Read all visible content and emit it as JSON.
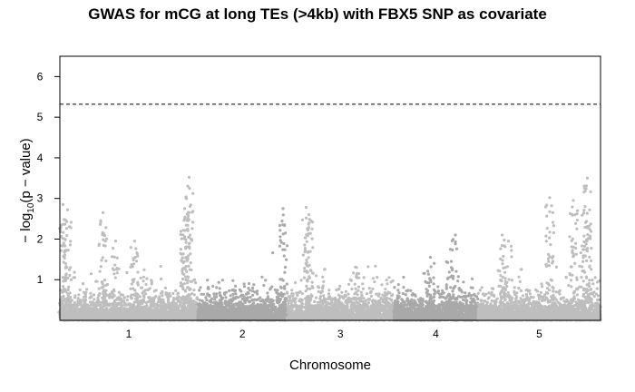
{
  "chart_data": {
    "type": "scatter",
    "title": "GWAS for mCG at long TEs (>4kb) with FBX5 SNP as covariate",
    "xlabel": "Chromosome",
    "ylabel": "−log10(p − value)",
    "ylabel_parts": {
      "pre": "− log",
      "sub": "10",
      "post": "(p − value)"
    },
    "ylim": [
      0,
      6.5
    ],
    "yticks": [
      "1",
      "2",
      "3",
      "4",
      "5",
      "6"
    ],
    "chromosomes": [
      {
        "name": "1",
        "start": 0,
        "end": 30.4,
        "color": "#bebebe"
      },
      {
        "name": "2",
        "start": 30.4,
        "end": 50.1,
        "color": "#a9a9a9"
      },
      {
        "name": "3",
        "start": 50.1,
        "end": 73.6,
        "color": "#bebebe"
      },
      {
        "name": "4",
        "start": 73.6,
        "end": 92.2,
        "color": "#a9a9a9"
      },
      {
        "name": "5",
        "start": 92.2,
        "end": 119.2,
        "color": "#bebebe"
      }
    ],
    "xlim": [
      0,
      119.2
    ],
    "threshold": 5.32,
    "peaks": [
      {
        "chrom": "1",
        "pos": 28.5,
        "value": 3.52
      },
      {
        "chrom": "1",
        "pos": 27.9,
        "value": 3.0
      },
      {
        "chrom": "1",
        "pos": 27.5,
        "value": 2.75
      },
      {
        "chrom": "1",
        "pos": 9.5,
        "value": 2.65
      },
      {
        "chrom": "1",
        "pos": 1.7,
        "value": 2.72
      },
      {
        "chrom": "1",
        "pos": 0.7,
        "value": 2.85
      },
      {
        "chrom": "1",
        "pos": 12.3,
        "value": 1.95
      },
      {
        "chrom": "1",
        "pos": 16.5,
        "value": 1.95
      },
      {
        "chrom": "2",
        "pos": 49.2,
        "value": 2.75
      },
      {
        "chrom": "3",
        "pos": 54.3,
        "value": 2.78
      },
      {
        "chrom": "3",
        "pos": 54.9,
        "value": 2.6
      },
      {
        "chrom": "3",
        "pos": 65.4,
        "value": 1.3
      },
      {
        "chrom": "4",
        "pos": 87.2,
        "value": 2.1
      },
      {
        "chrom": "4",
        "pos": 86.1,
        "value": 1.75
      },
      {
        "chrom": "4",
        "pos": 81.7,
        "value": 1.55
      },
      {
        "chrom": "5",
        "pos": 97.5,
        "value": 2.1
      },
      {
        "chrom": "5",
        "pos": 98.9,
        "value": 1.95
      },
      {
        "chrom": "5",
        "pos": 108.0,
        "value": 3.02
      },
      {
        "chrom": "5",
        "pos": 113.2,
        "value": 2.95
      },
      {
        "chrom": "5",
        "pos": 116.3,
        "value": 3.5
      },
      {
        "chrom": "5",
        "pos": 115.8,
        "value": 2.8
      }
    ]
  }
}
